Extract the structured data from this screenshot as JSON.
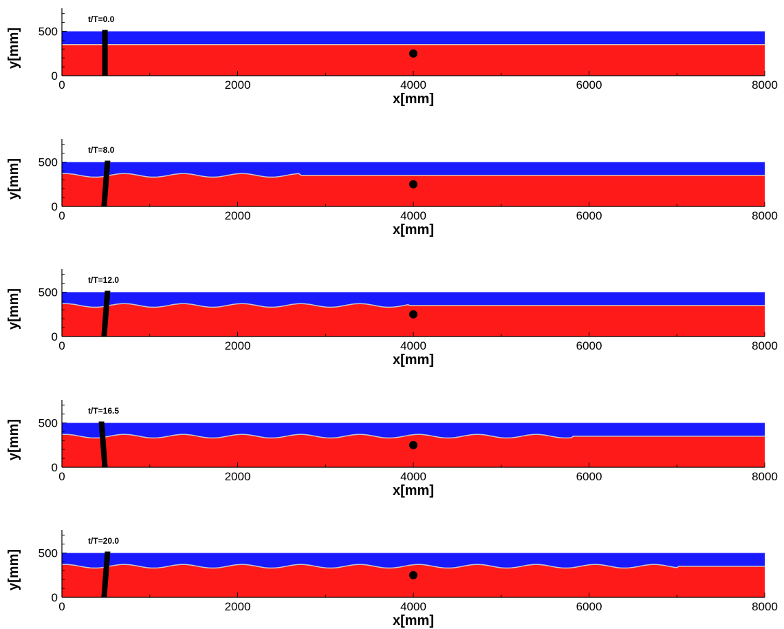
{
  "colors": {
    "air": "#1a1aff",
    "water": "#ff1a1a",
    "interface": "#c8c8c8",
    "object": "#000000",
    "axis": "#000000"
  },
  "chart_data": [
    {
      "type": "area",
      "time_label": "t/T=0.0",
      "xlabel": "x[mm]",
      "ylabel": "y[mm]",
      "xlim": [
        0,
        8000
      ],
      "ylim": [
        0,
        700
      ],
      "x_ticks": [
        "0",
        "2000",
        "4000",
        "6000",
        "8000"
      ],
      "y_ticks": [
        "0",
        "500"
      ],
      "domain_top": 500,
      "still_water_level": 350,
      "wave": {
        "amplitude": 0,
        "wavelength": 670,
        "extent_x": [
          0,
          8000
        ]
      },
      "paddle_x": 490,
      "paddle_tilt": 0,
      "marker": {
        "x": 4000,
        "y": 250
      }
    },
    {
      "type": "area",
      "time_label": "t/T=8.0",
      "xlabel": "x[mm]",
      "ylabel": "y[mm]",
      "xlim": [
        0,
        8000
      ],
      "ylim": [
        0,
        700
      ],
      "x_ticks": [
        "0",
        "2000",
        "4000",
        "6000",
        "8000"
      ],
      "y_ticks": [
        "0",
        "500"
      ],
      "domain_top": 500,
      "still_water_level": 350,
      "wave": {
        "amplitude": 20,
        "wavelength": 670,
        "extent_x": [
          0,
          2700
        ]
      },
      "paddle_x": 500,
      "paddle_tilt": 40,
      "marker": {
        "x": 4000,
        "y": 250
      }
    },
    {
      "type": "area",
      "time_label": "t/T=12.0",
      "xlabel": "x[mm]",
      "ylabel": "y[mm]",
      "xlim": [
        0,
        8000
      ],
      "ylim": [
        0,
        700
      ],
      "x_ticks": [
        "0",
        "2000",
        "4000",
        "6000",
        "8000"
      ],
      "y_ticks": [
        "0",
        "500"
      ],
      "domain_top": 500,
      "still_water_level": 350,
      "wave": {
        "amplitude": 20,
        "wavelength": 670,
        "extent_x": [
          0,
          3950
        ]
      },
      "paddle_x": 500,
      "paddle_tilt": 40,
      "marker": {
        "x": 4000,
        "y": 250
      }
    },
    {
      "type": "area",
      "time_label": "t/T=16.5",
      "xlabel": "x[mm]",
      "ylabel": "y[mm]",
      "xlim": [
        0,
        8000
      ],
      "ylim": [
        0,
        700
      ],
      "x_ticks": [
        "0",
        "2000",
        "4000",
        "6000",
        "8000"
      ],
      "y_ticks": [
        "0",
        "500"
      ],
      "domain_top": 500,
      "still_water_level": 350,
      "wave": {
        "amplitude": 20,
        "wavelength": 670,
        "extent_x": [
          0,
          5800
        ]
      },
      "paddle_x": 470,
      "paddle_tilt": -40,
      "marker": {
        "x": 4000,
        "y": 250
      }
    },
    {
      "type": "area",
      "time_label": "t/T=20.0",
      "xlabel": "x[mm]",
      "ylabel": "y[mm]",
      "xlim": [
        0,
        8000
      ],
      "ylim": [
        0,
        700
      ],
      "x_ticks": [
        "0",
        "2000",
        "4000",
        "6000",
        "8000"
      ],
      "y_ticks": [
        "0",
        "500"
      ],
      "domain_top": 500,
      "still_water_level": 350,
      "wave": {
        "amplitude": 20,
        "wavelength": 670,
        "extent_x": [
          0,
          7000
        ]
      },
      "paddle_x": 500,
      "paddle_tilt": 40,
      "marker": {
        "x": 4000,
        "y": 250
      }
    }
  ]
}
